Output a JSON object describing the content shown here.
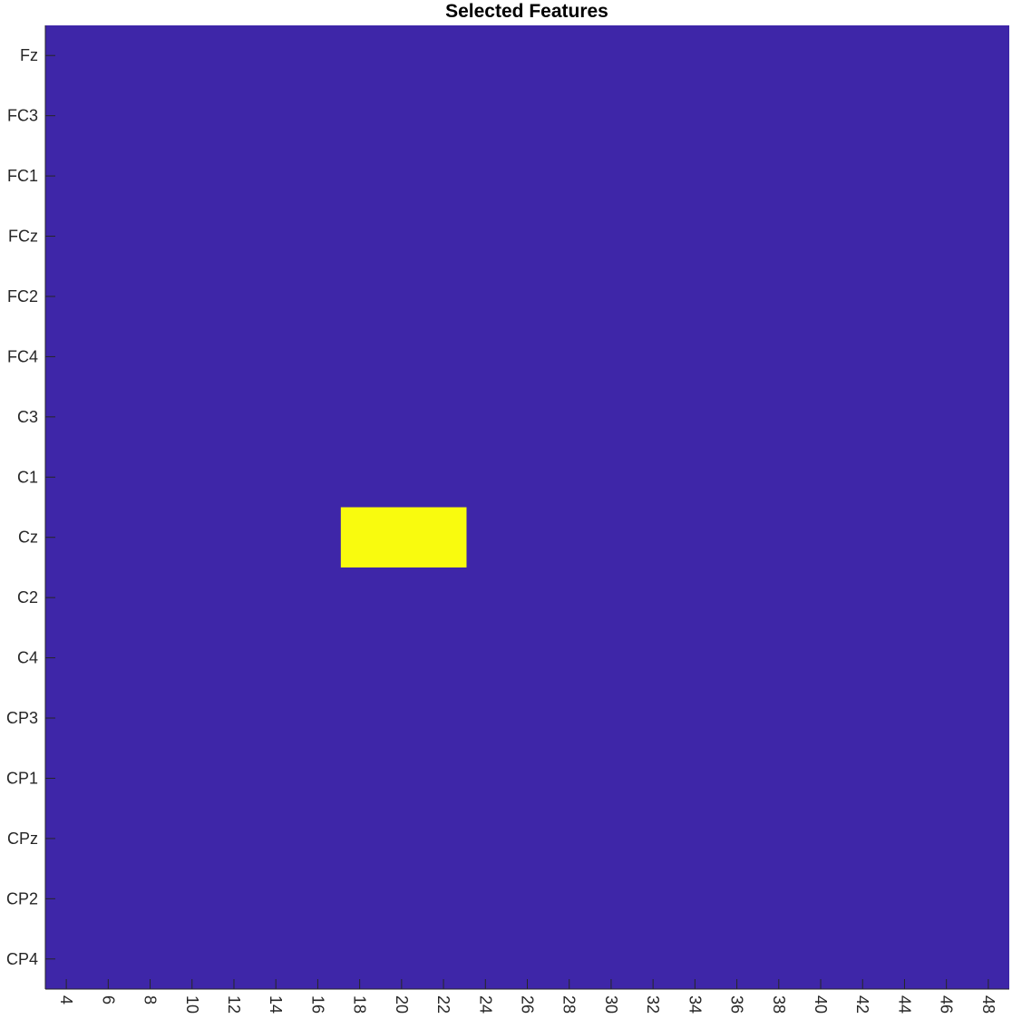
{
  "chart_data": {
    "type": "heatmap",
    "title": "Selected Features",
    "xlabel": "",
    "ylabel": "",
    "x_range": [
      3,
      49
    ],
    "x_ticks": [
      4,
      6,
      8,
      10,
      12,
      14,
      16,
      18,
      20,
      22,
      24,
      26,
      28,
      30,
      32,
      34,
      36,
      38,
      40,
      42,
      44,
      46,
      48
    ],
    "x_tick_labels": [
      "4",
      "6",
      "8",
      "10",
      "12",
      "14",
      "16",
      "18",
      "20",
      "22",
      "24",
      "26",
      "28",
      "30",
      "32",
      "34",
      "36",
      "38",
      "40",
      "42",
      "44",
      "46",
      "48"
    ],
    "x_tick_rotation_deg": 90,
    "rows": [
      "Fz",
      "FC3",
      "FC1",
      "FCz",
      "FC2",
      "FC4",
      "C3",
      "C1",
      "Cz",
      "C2",
      "C4",
      "CP3",
      "CP1",
      "CPz",
      "CP2",
      "CP4"
    ],
    "value_range": [
      0,
      1
    ],
    "default_value": 0,
    "selected_cells": [
      {
        "row": "Cz",
        "x_from": 17.1,
        "x_to": 23.1,
        "value": 1
      }
    ],
    "colors": {
      "low": "#3e26a8",
      "high": "#f9fb0e",
      "axis": "#262626"
    },
    "grid": false,
    "colorbar": false
  }
}
